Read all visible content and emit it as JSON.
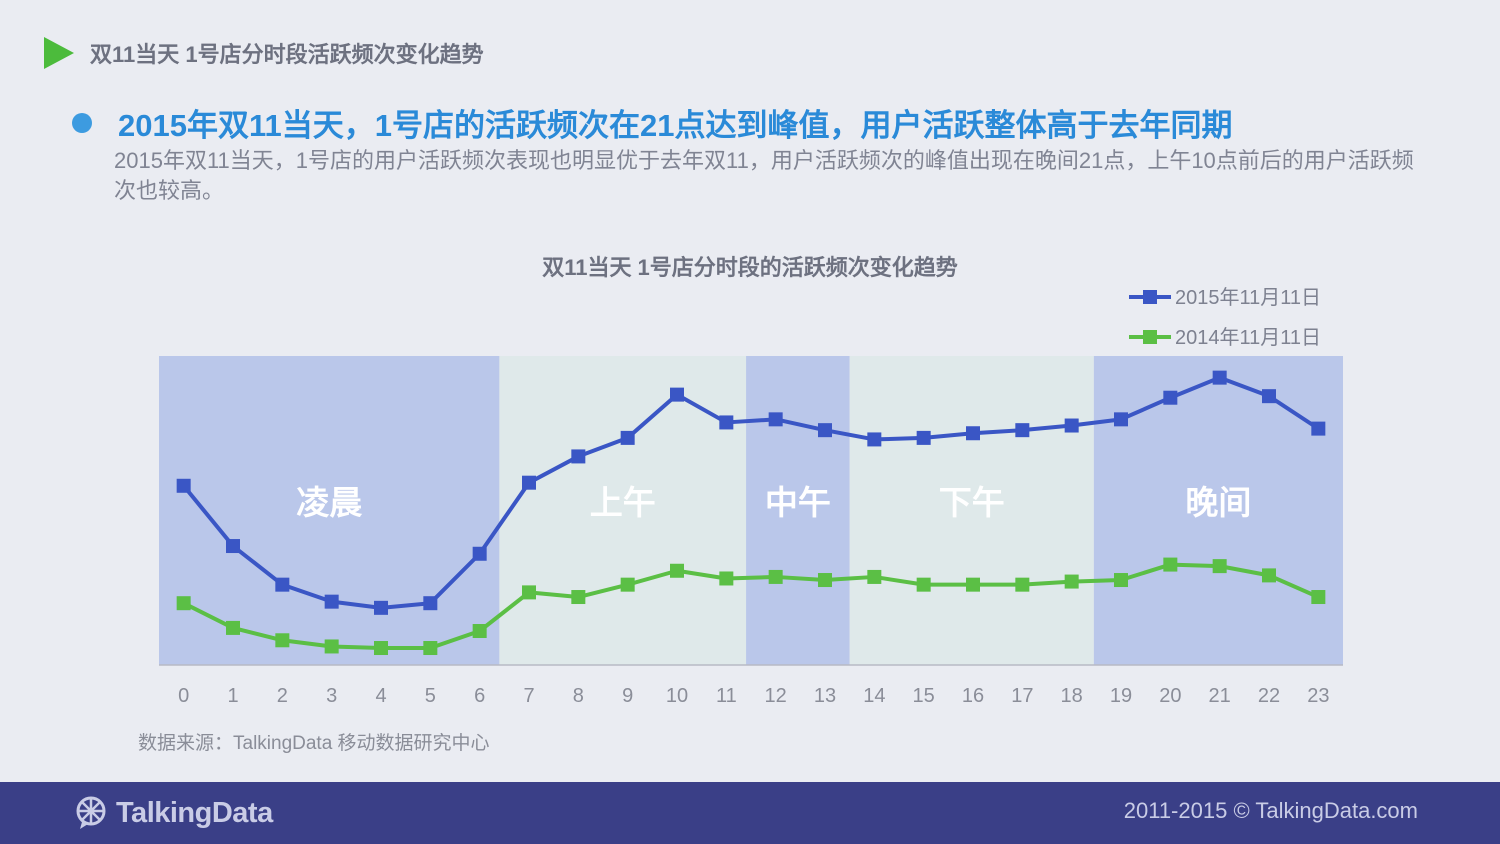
{
  "header": {
    "title": "双11当天 1号店分时段活跃频次变化趋势"
  },
  "headline": "2015年双11当天，1号店的活跃频次在21点达到峰值，用户活跃整体高于去年同期",
  "description": "2015年双11当天，1号店的用户活跃频次表现也明显优于去年双11，用户活跃频次的峰值出现在晚间21点，上午10点前后的用户活跃频次也较高。",
  "chart_data": {
    "type": "line",
    "title": "双11当天 1号店分时段的活跃频次变化趋势",
    "xlabel": "",
    "ylabel": "",
    "x": [
      "0",
      "1",
      "2",
      "3",
      "4",
      "5",
      "6",
      "7",
      "8",
      "9",
      "10",
      "11",
      "12",
      "13",
      "14",
      "15",
      "16",
      "17",
      "18",
      "19",
      "20",
      "21",
      "22",
      "23"
    ],
    "ylim": [
      0,
      100
    ],
    "grid": false,
    "legend_position": "top-right",
    "series": [
      {
        "name": "2015年11月11日",
        "color": "#3a56c5",
        "values": [
          58,
          38.5,
          26,
          20.5,
          18.5,
          20,
          36,
          59,
          67.5,
          73.5,
          87.5,
          78.5,
          79.5,
          76,
          73,
          73.5,
          75,
          76,
          77.5,
          79.5,
          86.5,
          93,
          87,
          76.5
        ]
      },
      {
        "name": "2014年11月11日",
        "color": "#5bbf45",
        "values": [
          20,
          12,
          8,
          6,
          5.5,
          5.5,
          11,
          23.5,
          22,
          26,
          30.5,
          28,
          28.5,
          27.5,
          28.5,
          26,
          26,
          26,
          27,
          27.5,
          32.5,
          32,
          29,
          22
        ]
      }
    ],
    "bands": [
      {
        "label": "凌晨",
        "from": -0.5,
        "to": 6.4,
        "color": "#bac7ea"
      },
      {
        "label": "上午",
        "from": 6.4,
        "to": 11.4,
        "color": "#dfe9ea"
      },
      {
        "label": "中午",
        "from": 11.4,
        "to": 13.5,
        "color": "#bac7ea"
      },
      {
        "label": "下午",
        "from": 13.5,
        "to": 18.45,
        "color": "#dfe9ea"
      },
      {
        "label": "晚间",
        "from": 18.45,
        "to": 23.5,
        "color": "#bac7ea"
      }
    ]
  },
  "source": "数据来源：TalkingData 移动数据研究中心",
  "footer": {
    "brand": "TalkingData",
    "copyright": "2011-2015 © TalkingData.com"
  }
}
